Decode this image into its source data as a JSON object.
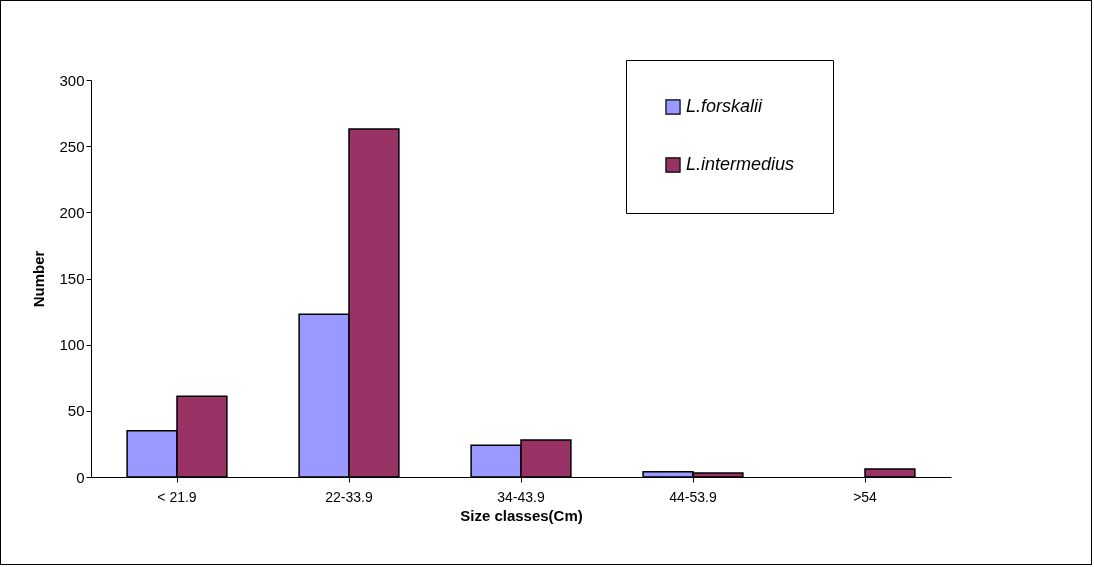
{
  "chart_data": {
    "type": "bar",
    "xlabel": "Size classes(Cm)",
    "ylabel": "Number",
    "categories": [
      "< 21.9",
      "22-33.9",
      "34-43.9",
      "44-53.9",
      ">54"
    ],
    "series": [
      {
        "name": "L.forskalii",
        "color": "#9999ff",
        "values": [
          35,
          123,
          24,
          4,
          null
        ]
      },
      {
        "name": "L.intermedius",
        "color": "#993366",
        "values": [
          61,
          263,
          28,
          3,
          6
        ]
      }
    ],
    "ylim": [
      0,
      300
    ],
    "yticks": [
      0,
      50,
      100,
      150,
      200,
      250,
      300
    ],
    "legend": "top right"
  }
}
